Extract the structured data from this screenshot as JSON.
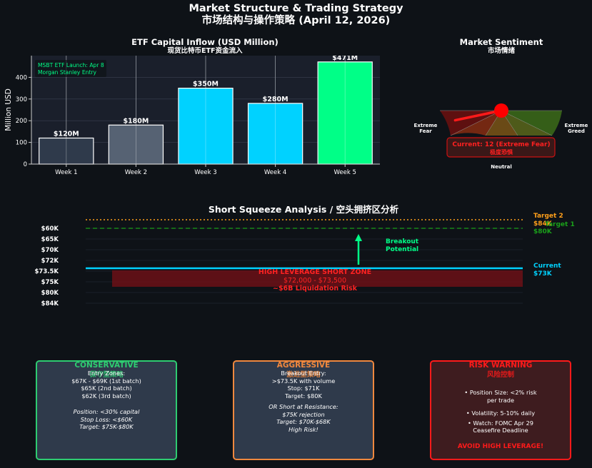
{
  "header": {
    "title": "Market Structure & Trading Strategy",
    "subtitle": "市场结构与操作策略 (April 12, 2026)"
  },
  "etf_chart": {
    "title": "ETF Capital Inflow (USD Million)",
    "subtitle": "现货比特币ETF资金流入",
    "annotation_line1": "MSBT ETF Launch: Apr 8",
    "annotation_line2": "Morgan Stanley Entry",
    "colors": {
      "bg": "#1a1f2b",
      "w1": "#2f3a4b",
      "w2": "#566273",
      "w34": "#00d2ff",
      "w5": "#00ff87"
    }
  },
  "sentiment": {
    "title": "Market Sentiment",
    "subtitle": "市场情绪",
    "label_fear": [
      "Extreme",
      "Fear"
    ],
    "label_greed": [
      "Extreme",
      "Greed"
    ],
    "label_neutral": "Neutral",
    "current_value": 12,
    "current_label": "Current: 12 (Extreme Fear)",
    "current_label_cn": "极度恐惧",
    "scale_max": 100
  },
  "squeeze": {
    "title": "Short Squeeze Analysis / 空头拥挤区分析",
    "zone_title": "HIGH LEVERAGE SHORT ZONE",
    "zone_range": "$72,000 - $73,500",
    "zone_risk": "~$6B Liquidation Risk",
    "breakout_line1": "Breakout",
    "breakout_line2": "Potential",
    "target2_label": "Target 2",
    "target2_value": "$84K",
    "target1_label": "Target 1",
    "target1_value": "$80K",
    "current_label": "Current",
    "current_value": "$73K",
    "price_levels": [
      "$60K",
      "$65K",
      "$70K",
      "$72K",
      "$73.5K",
      "$75K",
      "$80K",
      "$84K"
    ]
  },
  "cards": {
    "conservative": {
      "title": "CONSERVATIVE",
      "subtitle": "保守型策略",
      "lines": [
        "Entry Zones:",
        "$67K - $69K (1st batch)",
        "$65K (2nd batch)",
        "$62K (3rd batch)"
      ],
      "italic_lines": [
        "Position: <30% capital",
        "Stop Loss: <$60K",
        "Target: $75K-$80K"
      ]
    },
    "aggressive": {
      "title": "AGGRESSIVE",
      "subtitle": "激进型策略",
      "lines": [
        "Breakout Entry:",
        ">$73.5K with volume",
        "Stop: $71K",
        "Target: $80K"
      ],
      "italic_lines": [
        "OR Short at Resistance:",
        "$75K rejection",
        "Target: $70K-$68K",
        "High Risk!"
      ]
    },
    "risk": {
      "title": "RISK WARNING",
      "subtitle": "风险控制",
      "bullets": [
        "• Position Size: <2% risk",
        "per trade",
        "• Volatility: 5-10% daily",
        "• Watch: FOMC Apr 29",
        "Ceasefire Deadline"
      ],
      "footer": "AVOID HIGH LEVERAGE!"
    }
  },
  "chart_data": [
    {
      "type": "bar",
      "title": "ETF Capital Inflow (USD Million)",
      "subtitle": "现货比特币ETF资金流入",
      "categories": [
        "Week 1",
        "Week 2",
        "Week 3",
        "Week 4",
        "Week 5"
      ],
      "values": [
        120,
        180,
        350,
        280,
        471
      ],
      "data_labels": [
        "$120M",
        "$180M",
        "$350M",
        "$280M",
        "$471M"
      ],
      "ylabel": "Million USD",
      "xlabel": "",
      "ylim": [
        0,
        500
      ],
      "yticks": [
        0,
        100,
        200,
        300,
        400
      ],
      "grid": true
    },
    {
      "type": "gauge",
      "title": "Market Sentiment",
      "value": 12,
      "range": [
        0,
        100
      ]
    }
  ]
}
